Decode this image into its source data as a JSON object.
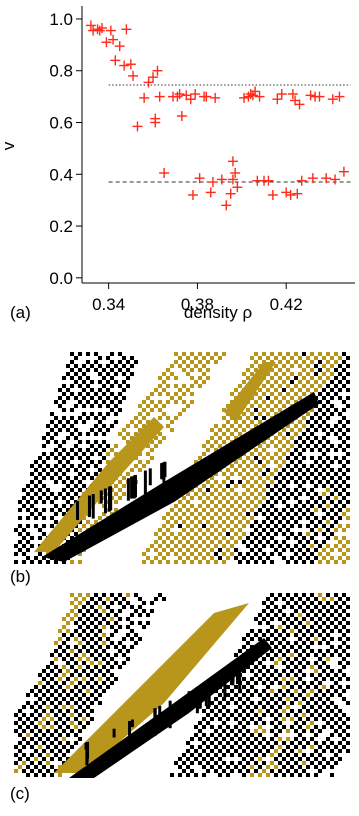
{
  "chart_data": {
    "type": "scatter",
    "panel_label": "(a)",
    "ylabel": "v",
    "xlabel": "density  ρ",
    "xlim": [
      0.328,
      0.451
    ],
    "ylim": [
      -0.02,
      1.05
    ],
    "x_ticks": [
      0.34,
      0.38,
      0.42
    ],
    "x_tick_labels": [
      "0.34",
      "0.38",
      "0.42"
    ],
    "y_ticks": [
      0.0,
      0.2,
      0.4,
      0.6,
      0.8,
      1.0
    ],
    "y_tick_labels": [
      "0.0",
      "0.2",
      "0.4",
      "0.6",
      "0.8",
      "1.0"
    ],
    "marker": "+",
    "marker_color": "#ff2a1a",
    "points": [
      [
        0.332,
        0.975
      ],
      [
        0.333,
        0.955
      ],
      [
        0.335,
        0.96
      ],
      [
        0.336,
        0.955
      ],
      [
        0.337,
        0.965
      ],
      [
        0.339,
        0.91
      ],
      [
        0.341,
        0.955
      ],
      [
        0.342,
        0.92
      ],
      [
        0.343,
        0.84
      ],
      [
        0.345,
        0.895
      ],
      [
        0.347,
        0.82
      ],
      [
        0.348,
        0.96
      ],
      [
        0.35,
        0.825
      ],
      [
        0.351,
        0.78
      ],
      [
        0.353,
        0.585
      ],
      [
        0.356,
        0.695
      ],
      [
        0.358,
        0.755
      ],
      [
        0.36,
        0.775
      ],
      [
        0.361,
        0.6
      ],
      [
        0.361,
        0.615
      ],
      [
        0.362,
        0.8
      ],
      [
        0.363,
        0.7
      ],
      [
        0.365,
        0.405
      ],
      [
        0.369,
        0.7
      ],
      [
        0.371,
        0.7
      ],
      [
        0.372,
        0.71
      ],
      [
        0.373,
        0.625
      ],
      [
        0.375,
        0.705
      ],
      [
        0.377,
        0.69
      ],
      [
        0.378,
        0.32
      ],
      [
        0.379,
        0.71
      ],
      [
        0.381,
        0.385
      ],
      [
        0.383,
        0.7
      ],
      [
        0.384,
        0.7
      ],
      [
        0.386,
        0.33
      ],
      [
        0.387,
        0.37
      ],
      [
        0.388,
        0.695
      ],
      [
        0.391,
        0.38
      ],
      [
        0.393,
        0.28
      ],
      [
        0.395,
        0.325
      ],
      [
        0.396,
        0.38
      ],
      [
        0.396,
        0.45
      ],
      [
        0.397,
        0.405
      ],
      [
        0.398,
        0.35
      ],
      [
        0.401,
        0.695
      ],
      [
        0.403,
        0.7
      ],
      [
        0.404,
        0.71
      ],
      [
        0.405,
        0.705
      ],
      [
        0.406,
        0.72
      ],
      [
        0.407,
        0.375
      ],
      [
        0.408,
        0.7
      ],
      [
        0.41,
        0.375
      ],
      [
        0.412,
        0.375
      ],
      [
        0.414,
        0.32
      ],
      [
        0.416,
        0.69
      ],
      [
        0.418,
        0.71
      ],
      [
        0.42,
        0.33
      ],
      [
        0.422,
        0.32
      ],
      [
        0.423,
        0.71
      ],
      [
        0.424,
        0.685
      ],
      [
        0.425,
        0.325
      ],
      [
        0.426,
        0.67
      ],
      [
        0.427,
        0.375
      ],
      [
        0.431,
        0.705
      ],
      [
        0.432,
        0.385
      ],
      [
        0.433,
        0.7
      ],
      [
        0.435,
        0.7
      ],
      [
        0.438,
        0.385
      ],
      [
        0.441,
        0.69
      ],
      [
        0.442,
        0.38
      ],
      [
        0.444,
        0.7
      ],
      [
        0.446,
        0.41
      ]
    ],
    "reference_lines": [
      {
        "y": 0.745,
        "x_from": 0.34,
        "x_to": 0.449,
        "style": "dotted"
      },
      {
        "y": 0.37,
        "x_from": 0.34,
        "x_to": 0.449,
        "style": "dashed"
      }
    ]
  },
  "patterns": {
    "colors": {
      "gold": "#b8961c",
      "black": "#000000"
    },
    "panel_b": {
      "label": "(b)"
    },
    "panel_c": {
      "label": "(c)"
    }
  }
}
